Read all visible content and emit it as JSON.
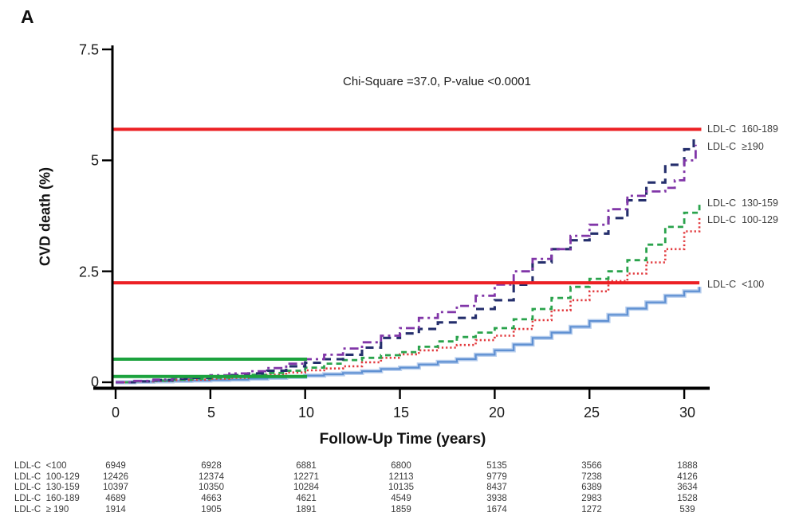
{
  "panel": {
    "label": "A"
  },
  "chart_data": {
    "type": "line",
    "subtype": "cumulative-incidence-step-curves",
    "annotation": "Chi-Square =37.0, P-value <0.0001",
    "xlabel": "Follow-Up Time (years)",
    "ylabel": "CVD death (%)",
    "xlim": [
      0,
      31
    ],
    "ylim": [
      0,
      7.5
    ],
    "grid": false,
    "legend_position": "right-of-curves",
    "x_ticks": [
      "0",
      "5",
      "10",
      "15",
      "20",
      "25",
      "30"
    ],
    "y_ticks": [
      "7.5",
      "5",
      "2.5",
      "0"
    ],
    "x_tick_values": [
      0,
      5,
      10,
      15,
      20,
      25,
      30
    ],
    "y_tick_values": [
      7.5,
      5,
      2.5,
      0
    ],
    "series": [
      {
        "name": "LDL-C <100",
        "label": "LDL-C  <100",
        "color": "#5f90d2",
        "halo": "#b9cfee",
        "dash": "",
        "width": 2.2,
        "points": [
          [
            0,
            0
          ],
          [
            1,
            0.01
          ],
          [
            2,
            0.02
          ],
          [
            3,
            0.03
          ],
          [
            4,
            0.04
          ],
          [
            5,
            0.05
          ],
          [
            6,
            0.06
          ],
          [
            7,
            0.08
          ],
          [
            8,
            0.1
          ],
          [
            9,
            0.12
          ],
          [
            10,
            0.15
          ],
          [
            11,
            0.18
          ],
          [
            12,
            0.21
          ],
          [
            13,
            0.25
          ],
          [
            14,
            0.3
          ],
          [
            15,
            0.33
          ],
          [
            16,
            0.4
          ],
          [
            17,
            0.46
          ],
          [
            18,
            0.52
          ],
          [
            19,
            0.62
          ],
          [
            20,
            0.72
          ],
          [
            21,
            0.85
          ],
          [
            22,
            1.0
          ],
          [
            23,
            1.12
          ],
          [
            24,
            1.25
          ],
          [
            25,
            1.38
          ],
          [
            26,
            1.52
          ],
          [
            27,
            1.66
          ],
          [
            28,
            1.8
          ],
          [
            29,
            1.95
          ],
          [
            30,
            2.05
          ],
          [
            30.8,
            2.15
          ]
        ]
      },
      {
        "name": "LDL-C 100-129",
        "label": "LDL-C  100-129",
        "color": "#e23a3e",
        "halo": "",
        "dash": "2.2 3",
        "width": 2.6,
        "points": [
          [
            0,
            0
          ],
          [
            1,
            0.02
          ],
          [
            2,
            0.03
          ],
          [
            3,
            0.05
          ],
          [
            4,
            0.06
          ],
          [
            5,
            0.08
          ],
          [
            6,
            0.1
          ],
          [
            7,
            0.13
          ],
          [
            8,
            0.17
          ],
          [
            9,
            0.22
          ],
          [
            10,
            0.27
          ],
          [
            11,
            0.31
          ],
          [
            12,
            0.36
          ],
          [
            13,
            0.45
          ],
          [
            14,
            0.55
          ],
          [
            15,
            0.63
          ],
          [
            16,
            0.72
          ],
          [
            17,
            0.78
          ],
          [
            18,
            0.84
          ],
          [
            19,
            0.95
          ],
          [
            20,
            1.05
          ],
          [
            21,
            1.2
          ],
          [
            22,
            1.4
          ],
          [
            23,
            1.62
          ],
          [
            24,
            1.85
          ],
          [
            25,
            2.05
          ],
          [
            26,
            2.28
          ],
          [
            27,
            2.45
          ],
          [
            28,
            2.7
          ],
          [
            29,
            3.0
          ],
          [
            30,
            3.4
          ],
          [
            30.8,
            3.7
          ]
        ]
      },
      {
        "name": "LDL-C 130-159",
        "label": "LDL-C  130-159",
        "color": "#2aa34c",
        "halo": "",
        "dash": "7 5",
        "width": 2.8,
        "points": [
          [
            0,
            0
          ],
          [
            1,
            0.02
          ],
          [
            2,
            0.04
          ],
          [
            3,
            0.06
          ],
          [
            4,
            0.08
          ],
          [
            5,
            0.1
          ],
          [
            6,
            0.13
          ],
          [
            7,
            0.17
          ],
          [
            8,
            0.21
          ],
          [
            9,
            0.26
          ],
          [
            10,
            0.33
          ],
          [
            11,
            0.42
          ],
          [
            12,
            0.5
          ],
          [
            13,
            0.55
          ],
          [
            14,
            0.61
          ],
          [
            15,
            0.68
          ],
          [
            16,
            0.8
          ],
          [
            17,
            0.92
          ],
          [
            18,
            1.02
          ],
          [
            19,
            1.12
          ],
          [
            20,
            1.22
          ],
          [
            21,
            1.42
          ],
          [
            22,
            1.65
          ],
          [
            23,
            1.9
          ],
          [
            24,
            2.15
          ],
          [
            25,
            2.33
          ],
          [
            26,
            2.5
          ],
          [
            27,
            2.75
          ],
          [
            28,
            3.1
          ],
          [
            29,
            3.5
          ],
          [
            30,
            3.82
          ],
          [
            30.8,
            4.05
          ]
        ]
      },
      {
        "name": "LDL-C 160-189",
        "label": "LDL-C  160-189",
        "color": "#242e6c",
        "halo": "",
        "dash": "10 7",
        "width": 3.1,
        "points": [
          [
            0,
            0
          ],
          [
            1,
            0.02
          ],
          [
            2,
            0.05
          ],
          [
            3,
            0.08
          ],
          [
            4,
            0.1
          ],
          [
            5,
            0.13
          ],
          [
            6,
            0.16
          ],
          [
            7,
            0.2
          ],
          [
            8,
            0.26
          ],
          [
            9,
            0.36
          ],
          [
            10,
            0.44
          ],
          [
            11,
            0.52
          ],
          [
            12,
            0.62
          ],
          [
            13,
            0.78
          ],
          [
            14,
            1.0
          ],
          [
            15,
            1.1
          ],
          [
            16,
            1.2
          ],
          [
            17,
            1.35
          ],
          [
            18,
            1.45
          ],
          [
            19,
            1.65
          ],
          [
            20,
            1.85
          ],
          [
            21,
            2.2
          ],
          [
            22,
            2.7
          ],
          [
            23,
            3.0
          ],
          [
            24,
            3.2
          ],
          [
            25,
            3.35
          ],
          [
            26,
            3.7
          ],
          [
            27,
            4.1
          ],
          [
            28,
            4.5
          ],
          [
            29,
            4.9
          ],
          [
            30,
            5.25
          ],
          [
            30.5,
            5.5
          ]
        ]
      },
      {
        "name": "LDL-C ≥190",
        "label": "LDL-C  ≥190",
        "color": "#8136a8",
        "halo": "",
        "dash": "11 5 3 5",
        "width": 2.8,
        "points": [
          [
            0,
            0
          ],
          [
            1,
            0.03
          ],
          [
            2,
            0.06
          ],
          [
            3,
            0.1
          ],
          [
            4,
            0.13
          ],
          [
            5,
            0.16
          ],
          [
            6,
            0.2
          ],
          [
            7,
            0.25
          ],
          [
            8,
            0.32
          ],
          [
            9,
            0.42
          ],
          [
            10,
            0.52
          ],
          [
            11,
            0.62
          ],
          [
            12,
            0.76
          ],
          [
            13,
            0.9
          ],
          [
            14,
            1.05
          ],
          [
            15,
            1.22
          ],
          [
            16,
            1.45
          ],
          [
            17,
            1.58
          ],
          [
            18,
            1.72
          ],
          [
            19,
            1.95
          ],
          [
            20,
            2.2
          ],
          [
            21,
            2.5
          ],
          [
            22,
            2.78
          ],
          [
            23,
            3.0
          ],
          [
            24,
            3.3
          ],
          [
            25,
            3.55
          ],
          [
            26,
            3.9
          ],
          [
            27,
            4.2
          ],
          [
            28,
            4.3
          ],
          [
            29,
            4.38
          ],
          [
            29.5,
            4.55
          ],
          [
            30,
            5.0
          ],
          [
            30.6,
            5.35
          ]
        ]
      }
    ],
    "reference_lines": [
      {
        "name": "red-upper",
        "color": "#ec2024",
        "y": 5.7,
        "x_from": -0.18,
        "x_to": 30.9,
        "width": 4
      },
      {
        "name": "red-lower",
        "color": "#ec2024",
        "y": 2.24,
        "x_from": -0.18,
        "x_to": 30.8,
        "width": 4
      },
      {
        "name": "green-upper",
        "color": "#1ca23e",
        "y": 0.52,
        "x_from": -0.18,
        "x_to": 10.1,
        "width": 4
      },
      {
        "name": "green-lower",
        "color": "#1ca23e",
        "y": 0.13,
        "x_from": -0.18,
        "x_to": 10.1,
        "width": 4
      }
    ]
  },
  "risk_table": {
    "time_points": [
      0,
      5,
      10,
      15,
      20,
      25,
      30
    ],
    "rows": [
      {
        "label": "LDL-C  <100",
        "counts": [
          "6949",
          "6928",
          "6881",
          "6800",
          "5135",
          "3566",
          "1888"
        ]
      },
      {
        "label": "LDL-C  100-129",
        "counts": [
          "12426",
          "12374",
          "12271",
          "12113",
          "9779",
          "7238",
          "4126"
        ]
      },
      {
        "label": "LDL-C  130-159",
        "counts": [
          "10397",
          "10350",
          "10284",
          "10135",
          "8437",
          "6389",
          "3634"
        ]
      },
      {
        "label": "LDL-C  160-189",
        "counts": [
          "4689",
          "4663",
          "4621",
          "4549",
          "3938",
          "2983",
          "1528"
        ]
      },
      {
        "label": "LDL-C  ≥ 190",
        "counts": [
          "1914",
          "1905",
          "1891",
          "1859",
          "1674",
          "1272",
          "539"
        ]
      }
    ]
  }
}
